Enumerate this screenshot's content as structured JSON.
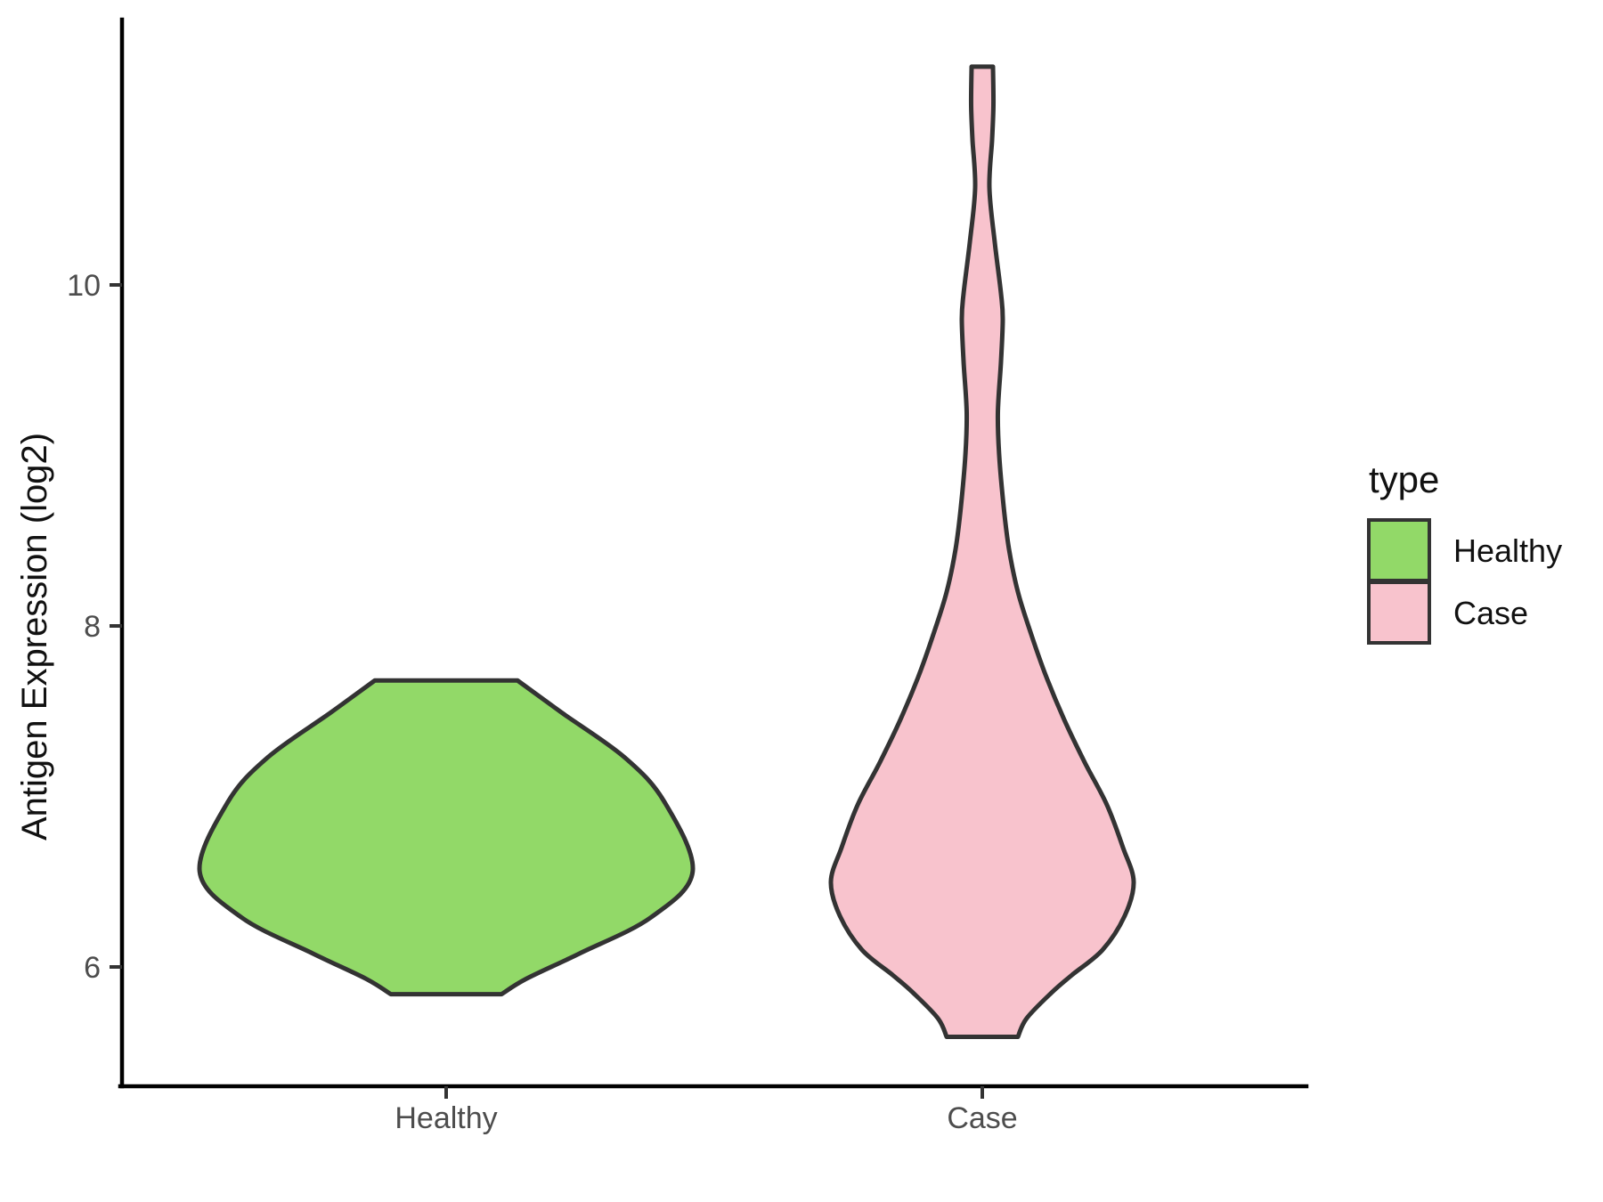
{
  "chart_data": {
    "type": "violin",
    "title": "",
    "xlabel": "",
    "ylabel": "Antigen Expression (log2)",
    "categories": [
      "Healthy",
      "Case"
    ],
    "y_axis": {
      "ticks": [
        6,
        8,
        10
      ],
      "tick_labels": [
        "6",
        "8",
        "10"
      ],
      "range": [
        5.3,
        11.56
      ]
    },
    "grid": "off",
    "legend": {
      "title": "type",
      "position": "right",
      "entries": [
        {
          "label": "Healthy",
          "color": "#92D968"
        },
        {
          "label": "Case",
          "color": "#F8C3CD"
        }
      ]
    },
    "series": [
      {
        "name": "Healthy",
        "color": "#92D968",
        "outline_color": "#333333",
        "value_range": [
          5.84,
          7.68
        ],
        "widest_at": 6.56,
        "profile_value_halfwidth": [
          [
            7.68,
            0.133
          ],
          [
            7.49,
            0.216
          ],
          [
            7.23,
            0.332
          ],
          [
            6.97,
            0.406
          ],
          [
            6.56,
            0.459
          ],
          [
            6.29,
            0.381
          ],
          [
            6.08,
            0.249
          ],
          [
            5.93,
            0.149
          ],
          [
            5.84,
            0.103
          ]
        ]
      },
      {
        "name": "Case",
        "color": "#F8C3CD",
        "outline_color": "#333333",
        "value_range": [
          5.59,
          11.28
        ],
        "widest_at": 6.5,
        "profile_value_halfwidth": [
          [
            11.28,
            0.0199
          ],
          [
            11.05,
            0.0207
          ],
          [
            10.85,
            0.0182
          ],
          [
            10.57,
            0.0133
          ],
          [
            10.25,
            0.0232
          ],
          [
            9.95,
            0.0348
          ],
          [
            9.8,
            0.0381
          ],
          [
            9.55,
            0.0348
          ],
          [
            9.25,
            0.029
          ],
          [
            9.0,
            0.0315
          ],
          [
            8.7,
            0.0398
          ],
          [
            8.45,
            0.0498
          ],
          [
            8.2,
            0.0663
          ],
          [
            7.95,
            0.0912
          ],
          [
            7.7,
            0.1194
          ],
          [
            7.45,
            0.1526
          ],
          [
            7.2,
            0.1907
          ],
          [
            6.95,
            0.2322
          ],
          [
            6.7,
            0.262
          ],
          [
            6.5,
            0.2819
          ],
          [
            6.3,
            0.2653
          ],
          [
            6.1,
            0.2239
          ],
          [
            5.95,
            0.1658
          ],
          [
            5.85,
            0.1294
          ],
          [
            5.7,
            0.0829
          ],
          [
            5.59,
            0.0663
          ]
        ]
      }
    ]
  }
}
